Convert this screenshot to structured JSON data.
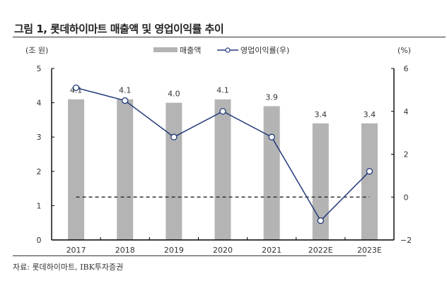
{
  "header": {
    "title": "그림 1, 롯데하이마트 매출액 및 영업이익률 추이"
  },
  "footer": {
    "source": "자료: 롯데하이마트, IBK투자증권"
  },
  "colors": {
    "bar": "#b4b4b4",
    "line": "#233a7a",
    "dashed_zero": "#333333"
  },
  "chart_data": {
    "type": "bar+line",
    "title": "그림 1, 롯데하이마트 매출액 및 영업이익률 추이",
    "categories": [
      "2017",
      "2018",
      "2019",
      "2020",
      "2021",
      "2022E",
      "2023E"
    ],
    "series": [
      {
        "name": "매출액",
        "type": "bar",
        "axis": "left",
        "values": [
          4.1,
          4.1,
          4.0,
          4.1,
          3.9,
          3.4,
          3.4
        ],
        "labels": [
          "4.1",
          "4.1",
          "4.0",
          "4.1",
          "3.9",
          "3.4",
          "3.4"
        ]
      },
      {
        "name": "영업이익률(우)",
        "type": "line",
        "axis": "right",
        "values": [
          5.1,
          4.5,
          2.8,
          4.0,
          2.8,
          -1.1,
          1.2
        ]
      }
    ],
    "left_axis": {
      "unit_label": "(조 원)",
      "ylim": [
        0,
        5
      ],
      "ticks": [
        "0",
        "1",
        "2",
        "3",
        "4",
        "5"
      ]
    },
    "right_axis": {
      "unit_label": "(%)",
      "ylim": [
        -2,
        6
      ],
      "ticks": [
        "−2",
        "0",
        "2",
        "4",
        "6"
      ]
    },
    "reference_line": {
      "axis": "right",
      "value": 0,
      "style": "dashed"
    },
    "legend": {
      "position": "top-center",
      "items": [
        "매출액",
        "영업이익률(우)"
      ]
    },
    "grid": false
  }
}
